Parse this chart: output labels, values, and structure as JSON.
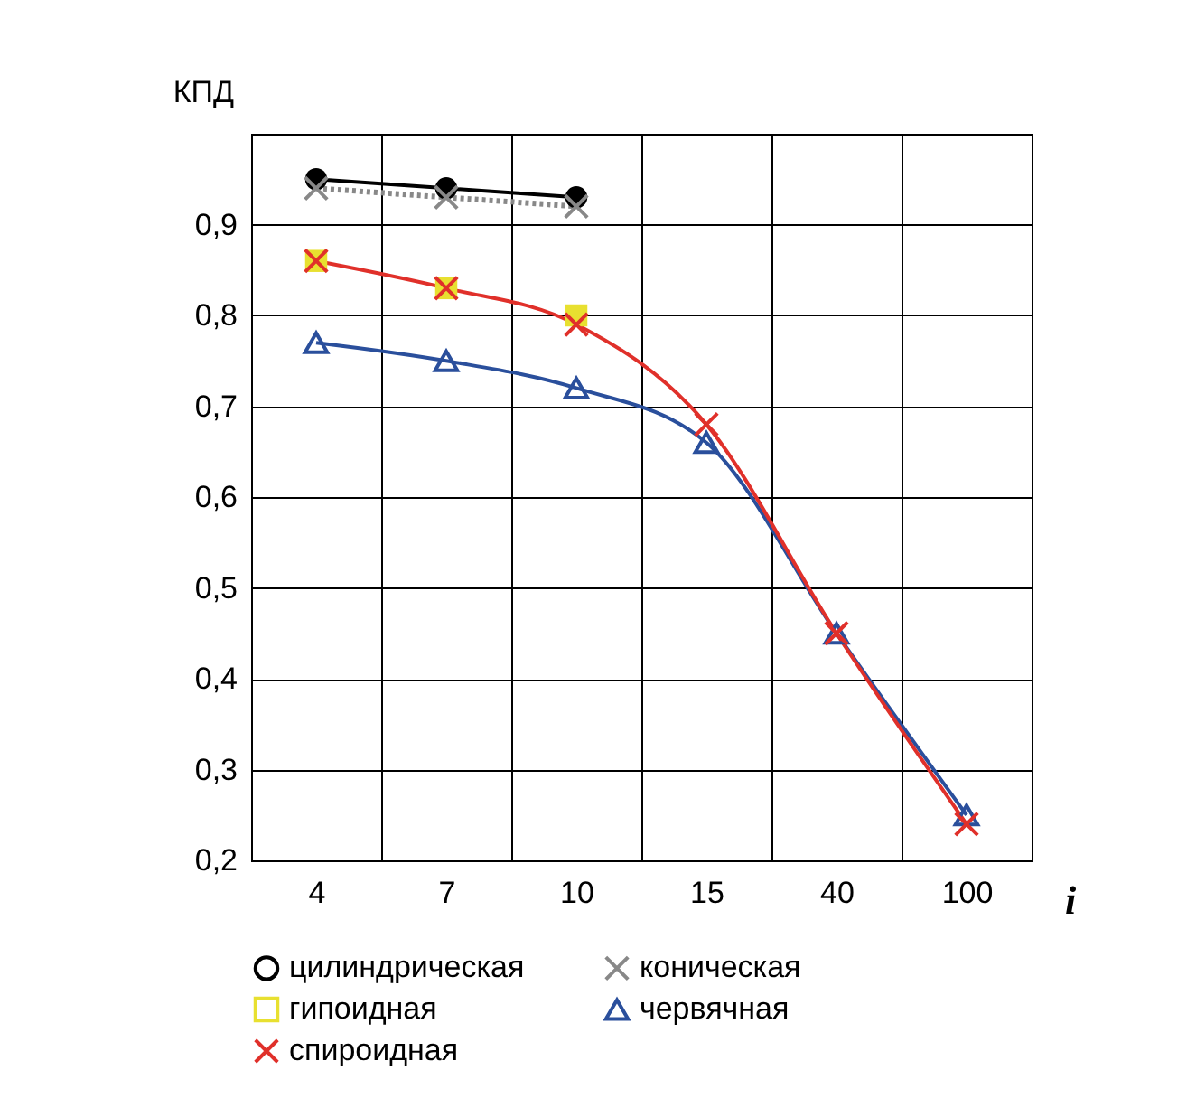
{
  "chart_data": {
    "type": "line",
    "xlabel": "i",
    "ylabel": "КПД",
    "categories": [
      "4",
      "7",
      "10",
      "15",
      "40",
      "100"
    ],
    "series": [
      {
        "name": "цилиндрическая",
        "color": "#000000",
        "marker": "circle",
        "values": [
          0.95,
          0.94,
          0.93,
          null,
          null,
          null
        ]
      },
      {
        "name": "коническая",
        "color": "#888888",
        "marker": "cross",
        "line_style": "dotted",
        "values": [
          0.94,
          0.93,
          0.92,
          null,
          null,
          null
        ]
      },
      {
        "name": "гипоидная",
        "type": "scatter",
        "color": "#e8e030",
        "marker": "square",
        "values": [
          0.86,
          0.83,
          0.8,
          null,
          null,
          null
        ]
      },
      {
        "name": "червячная",
        "color": "#2a4f9c",
        "marker": "triangle",
        "values": [
          0.77,
          0.75,
          0.72,
          0.66,
          0.45,
          0.25
        ]
      },
      {
        "name": "спироидная",
        "color": "#e0302a",
        "marker": "cross",
        "values": [
          0.86,
          0.83,
          0.79,
          0.68,
          0.45,
          0.24
        ]
      }
    ],
    "ylim": [
      0.2,
      1.0
    ],
    "yticks": [
      {
        "value": 0.2,
        "label": "0,2"
      },
      {
        "value": 0.3,
        "label": "0,3"
      },
      {
        "value": 0.4,
        "label": "0,4"
      },
      {
        "value": 0.5,
        "label": "0,5"
      },
      {
        "value": 0.6,
        "label": "0,6"
      },
      {
        "value": 0.7,
        "label": "0,7"
      },
      {
        "value": 0.8,
        "label": "0,8"
      },
      {
        "value": 0.9,
        "label": "0,9"
      }
    ],
    "grid": true,
    "legend": "bottom"
  }
}
